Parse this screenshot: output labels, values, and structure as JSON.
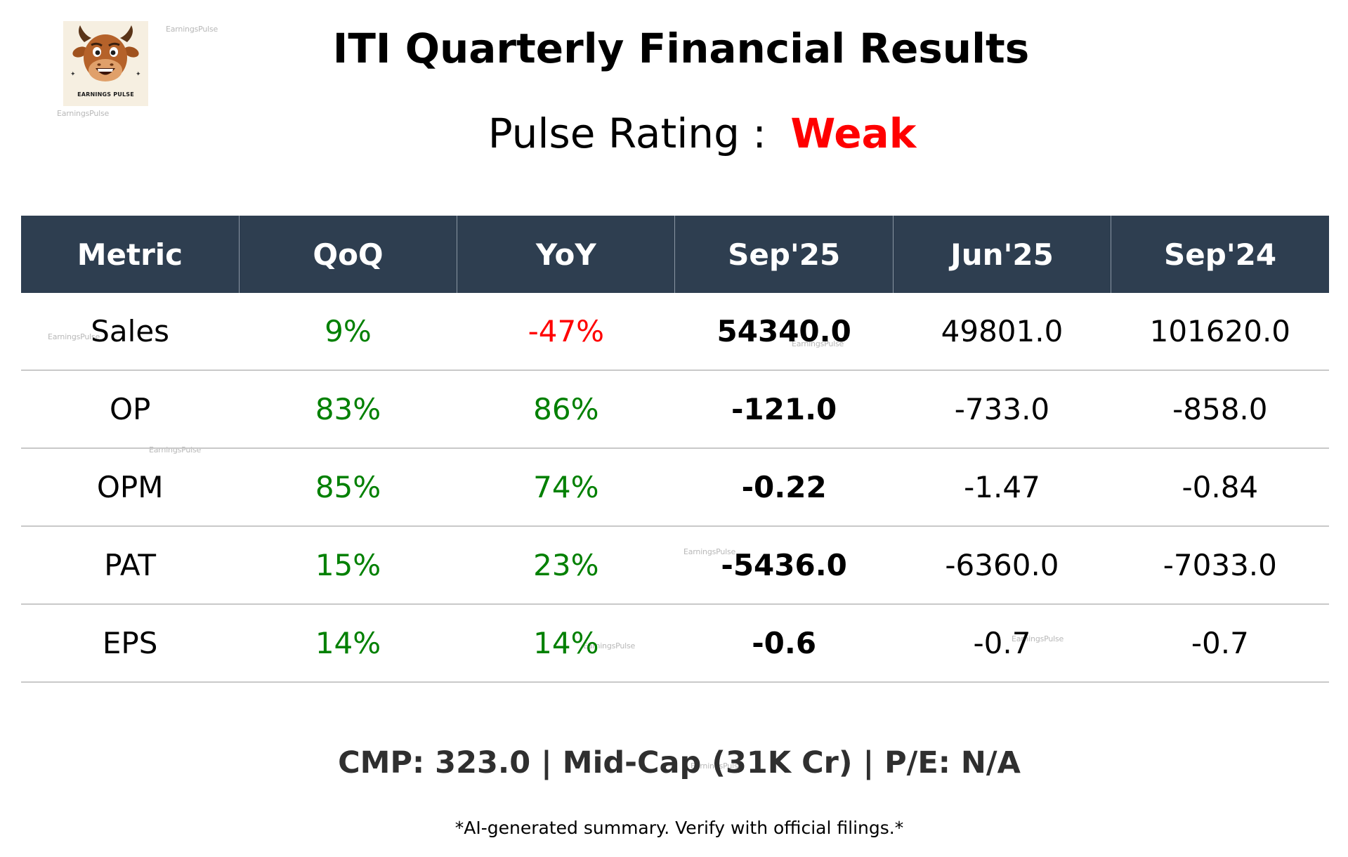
{
  "logo": {
    "text": "EARNINGS PULSE",
    "icon": "bull-mascot-icon"
  },
  "watermark": "EarningsPulse",
  "title": "ITI Quarterly Financial Results",
  "rating": {
    "label": "Pulse Rating :",
    "value": "Weak",
    "color": "#ff0000"
  },
  "table": {
    "headers": [
      "Metric",
      "QoQ",
      "YoY",
      "Sep'25",
      "Jun'25",
      "Sep'24"
    ],
    "rows": [
      {
        "metric": "Sales",
        "qoq": "9%",
        "qoq_color": "#008000",
        "yoy": "-47%",
        "yoy_color": "#ff0000",
        "sep25": "54340.0",
        "jun25": "49801.0",
        "sep24": "101620.0"
      },
      {
        "metric": "OP",
        "qoq": "83%",
        "qoq_color": "#008000",
        "yoy": "86%",
        "yoy_color": "#008000",
        "sep25": "-121.0",
        "jun25": "-733.0",
        "sep24": "-858.0"
      },
      {
        "metric": "OPM",
        "qoq": "85%",
        "qoq_color": "#008000",
        "yoy": "74%",
        "yoy_color": "#008000",
        "sep25": "-0.22",
        "jun25": "-1.47",
        "sep24": "-0.84"
      },
      {
        "metric": "PAT",
        "qoq": "15%",
        "qoq_color": "#008000",
        "yoy": "23%",
        "yoy_color": "#008000",
        "sep25": "-5436.0",
        "jun25": "-6360.0",
        "sep24": "-7033.0"
      },
      {
        "metric": "EPS",
        "qoq": "14%",
        "qoq_color": "#008000",
        "yoy": "14%",
        "yoy_color": "#008000",
        "sep25": "-0.6",
        "jun25": "-0.7",
        "sep24": "-0.7"
      }
    ]
  },
  "footer": {
    "summary": "CMP: 323.0 | Mid-Cap (31K Cr) | P/E: N/A",
    "disclaimer": "*AI-generated summary. Verify with official filings.*"
  },
  "colors": {
    "header_bg": "#2e3e50",
    "positive": "#008000",
    "negative": "#ff0000"
  }
}
